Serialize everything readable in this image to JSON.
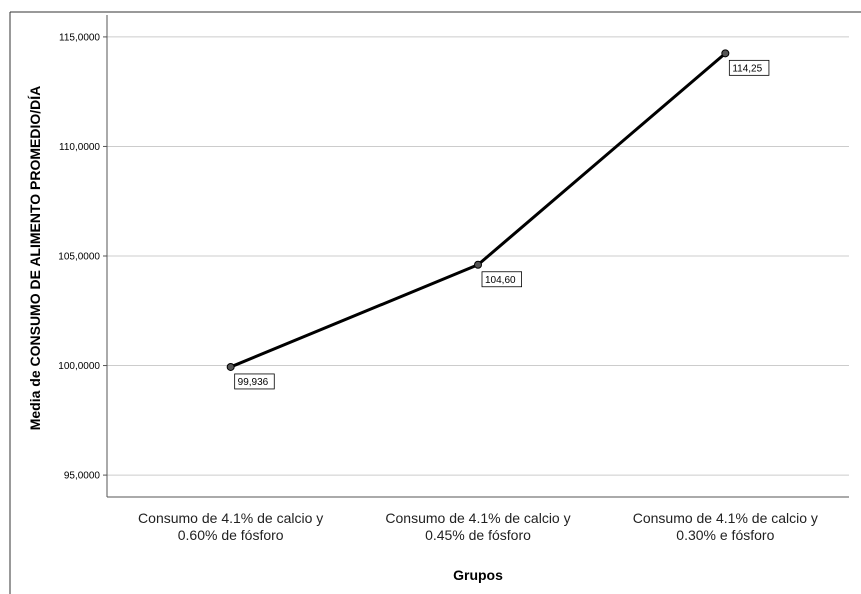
{
  "chart_data": {
    "type": "line",
    "title": "",
    "xlabel": "Grupos",
    "ylabel": "Media de CONSUMO DE ALIMENTO PROMEDIO/DÍA",
    "categories": [
      [
        "Consumo de 4.1% de calcio y",
        "0.60% de fósforo"
      ],
      [
        "Consumo de 4.1% de calcio y",
        "0.45% de fósforo"
      ],
      [
        "Consumo de 4.1% de calcio y",
        "0.30% e fósforo"
      ]
    ],
    "series": [
      {
        "values": [
          99.936,
          104.6,
          114.25
        ]
      }
    ],
    "data_labels": [
      "99,936",
      "104,60",
      "114,25"
    ],
    "yticks": [
      95,
      100,
      105,
      110,
      115
    ],
    "ytick_labels": [
      "95,0000",
      "100,0000",
      "105,0000",
      "110,0000",
      "115,0000"
    ],
    "ylim": [
      94,
      116
    ],
    "grid": true,
    "line_color": "#000000",
    "marker_color": "#555555",
    "grid_color": "#cccccc"
  }
}
